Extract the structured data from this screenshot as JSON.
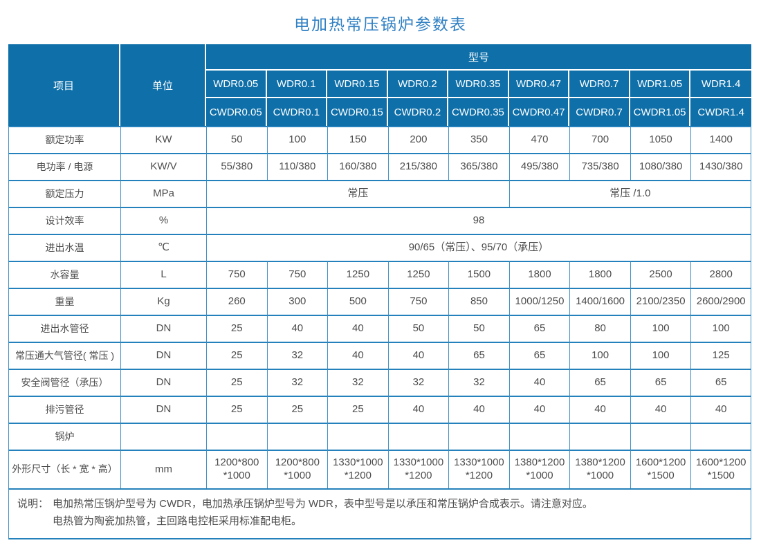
{
  "title": "电加热常压锅炉参数表",
  "colors": {
    "header_bg": "#0e6fa9",
    "header_text": "#ffffff",
    "title_text": "#3181c4",
    "grid_line": "#2481bb",
    "grid_line_light": "#4392c6",
    "body_text": "#4d4d4d"
  },
  "table": {
    "header": {
      "item_label": "项目",
      "unit_label": "单位",
      "model_label": "型号",
      "model_rows": [
        [
          "WDR0.05",
          "WDR0.1",
          "WDR0.15",
          "WDR0.2",
          "WDR0.35",
          "WDR0.47",
          "WDR0.7",
          "WDR1.05",
          "WDR1.4"
        ],
        [
          "CWDR0.05",
          "CWDR0.1",
          "CWDR0.15",
          "CWDR0.2",
          "CWDR0.35",
          "CWDR0.47",
          "CWDR0.7",
          "CWDR1.05",
          "CWDR1.4"
        ]
      ]
    },
    "rows": [
      {
        "label": "额定功率",
        "unit": "KW",
        "cells": [
          {
            "t": "50"
          },
          {
            "t": "100"
          },
          {
            "t": "150"
          },
          {
            "t": "200"
          },
          {
            "t": "350"
          },
          {
            "t": "470"
          },
          {
            "t": "700"
          },
          {
            "t": "1050"
          },
          {
            "t": "1400"
          }
        ]
      },
      {
        "label": "电功率 / 电源",
        "unit": "KW/V",
        "cells": [
          {
            "t": "55/380"
          },
          {
            "t": "110/380"
          },
          {
            "t": "160/380"
          },
          {
            "t": "215/380"
          },
          {
            "t": "365/380"
          },
          {
            "t": "495/380"
          },
          {
            "t": "735/380"
          },
          {
            "t": "1080/380"
          },
          {
            "t": "1430/380"
          }
        ]
      },
      {
        "label": "额定压力",
        "unit": "MPa",
        "cells": [
          {
            "t": "常压",
            "span": 5
          },
          {
            "t": "常压 /1.0",
            "span": 4
          }
        ]
      },
      {
        "label": "设计效率",
        "unit": "%",
        "cells": [
          {
            "t": "98",
            "span": 9
          }
        ]
      },
      {
        "label": "进出水温",
        "unit": "℃",
        "cells": [
          {
            "t": "90/65（常压）、95/70（承压）",
            "span": 9
          }
        ]
      },
      {
        "label": "水容量",
        "unit": "L",
        "cells": [
          {
            "t": "750"
          },
          {
            "t": "750"
          },
          {
            "t": "1250"
          },
          {
            "t": "1250"
          },
          {
            "t": "1500"
          },
          {
            "t": "1800"
          },
          {
            "t": "1800"
          },
          {
            "t": "2500"
          },
          {
            "t": "2800"
          }
        ]
      },
      {
        "label": "重量",
        "unit": "Kg",
        "cells": [
          {
            "t": "260"
          },
          {
            "t": "300"
          },
          {
            "t": "500"
          },
          {
            "t": "750"
          },
          {
            "t": "850"
          },
          {
            "t": "1000/1250"
          },
          {
            "t": "1400/1600"
          },
          {
            "t": "2100/2350"
          },
          {
            "t": "2600/2900"
          }
        ]
      },
      {
        "label": "进出水管径",
        "unit": "DN",
        "cells": [
          {
            "t": "25"
          },
          {
            "t": "40"
          },
          {
            "t": "40"
          },
          {
            "t": "50"
          },
          {
            "t": "50"
          },
          {
            "t": "65"
          },
          {
            "t": "80"
          },
          {
            "t": "100"
          },
          {
            "t": "100"
          }
        ]
      },
      {
        "label": "常压通大气管径( 常压 )",
        "unit": "DN",
        "cells": [
          {
            "t": "25"
          },
          {
            "t": "32"
          },
          {
            "t": "40"
          },
          {
            "t": "40"
          },
          {
            "t": "65"
          },
          {
            "t": "65"
          },
          {
            "t": "100"
          },
          {
            "t": "100"
          },
          {
            "t": "125"
          }
        ]
      },
      {
        "label": "安全阀管径（承压）",
        "unit": "DN",
        "cells": [
          {
            "t": "25"
          },
          {
            "t": "32"
          },
          {
            "t": "32"
          },
          {
            "t": "32"
          },
          {
            "t": "32"
          },
          {
            "t": "40"
          },
          {
            "t": "65"
          },
          {
            "t": "65"
          },
          {
            "t": "65"
          }
        ]
      },
      {
        "label": "排污管径",
        "unit": "DN",
        "cells": [
          {
            "t": "25"
          },
          {
            "t": "25"
          },
          {
            "t": "25"
          },
          {
            "t": "40"
          },
          {
            "t": "40"
          },
          {
            "t": "40"
          },
          {
            "t": "40"
          },
          {
            "t": "40"
          },
          {
            "t": "40"
          }
        ]
      },
      {
        "label": "锅炉",
        "unit": "",
        "cells": [
          {
            "t": ""
          },
          {
            "t": ""
          },
          {
            "t": ""
          },
          {
            "t": ""
          },
          {
            "t": ""
          },
          {
            "t": ""
          },
          {
            "t": ""
          },
          {
            "t": ""
          },
          {
            "t": ""
          }
        ]
      },
      {
        "label": "外形尺寸（长 * 宽 * 高）",
        "unit": "mm",
        "tall": true,
        "cells": [
          {
            "lines": [
              "1200*800",
              "*1000"
            ]
          },
          {
            "lines": [
              "1200*800",
              "*1000"
            ]
          },
          {
            "lines": [
              "1330*1000",
              "*1200"
            ]
          },
          {
            "lines": [
              "1330*1000",
              "*1200"
            ]
          },
          {
            "lines": [
              "1330*1000",
              "*1200"
            ]
          },
          {
            "lines": [
              "1380*1200",
              "*1000"
            ]
          },
          {
            "lines": [
              "1380*1200",
              "*1000"
            ]
          },
          {
            "lines": [
              "1600*1200",
              "*1500"
            ]
          },
          {
            "lines": [
              "1600*1200",
              "*1500"
            ]
          }
        ]
      }
    ],
    "note": {
      "prefix": "说明：",
      "lines": [
        "电加热常压锅炉型号为 CWDR，电加热承压锅炉型号为 WDR，表中型号是以承压和常压锅炉合成表示。请注意对应。",
        "电热管为陶瓷加热管，主回路电控柜采用标准配电柜。"
      ]
    }
  }
}
